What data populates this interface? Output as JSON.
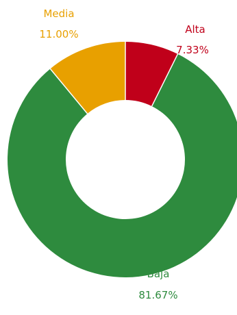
{
  "chart_data": {
    "type": "donut",
    "title": "",
    "slices": [
      {
        "name": "Alta",
        "value": 7.33,
        "label": "7.33%",
        "color": "#c0001a"
      },
      {
        "name": "Baja",
        "value": 81.67,
        "label": "81.67%",
        "color": "#2e8b3e"
      },
      {
        "name": "Media",
        "value": 11.0,
        "label": "11.00%",
        "color": "#e8a000"
      }
    ],
    "start": "top",
    "direction": "clockwise",
    "label_colors": {
      "Alta": "#c0001a",
      "Baja": "#2e8b3e",
      "Media": "#e8a000"
    }
  }
}
